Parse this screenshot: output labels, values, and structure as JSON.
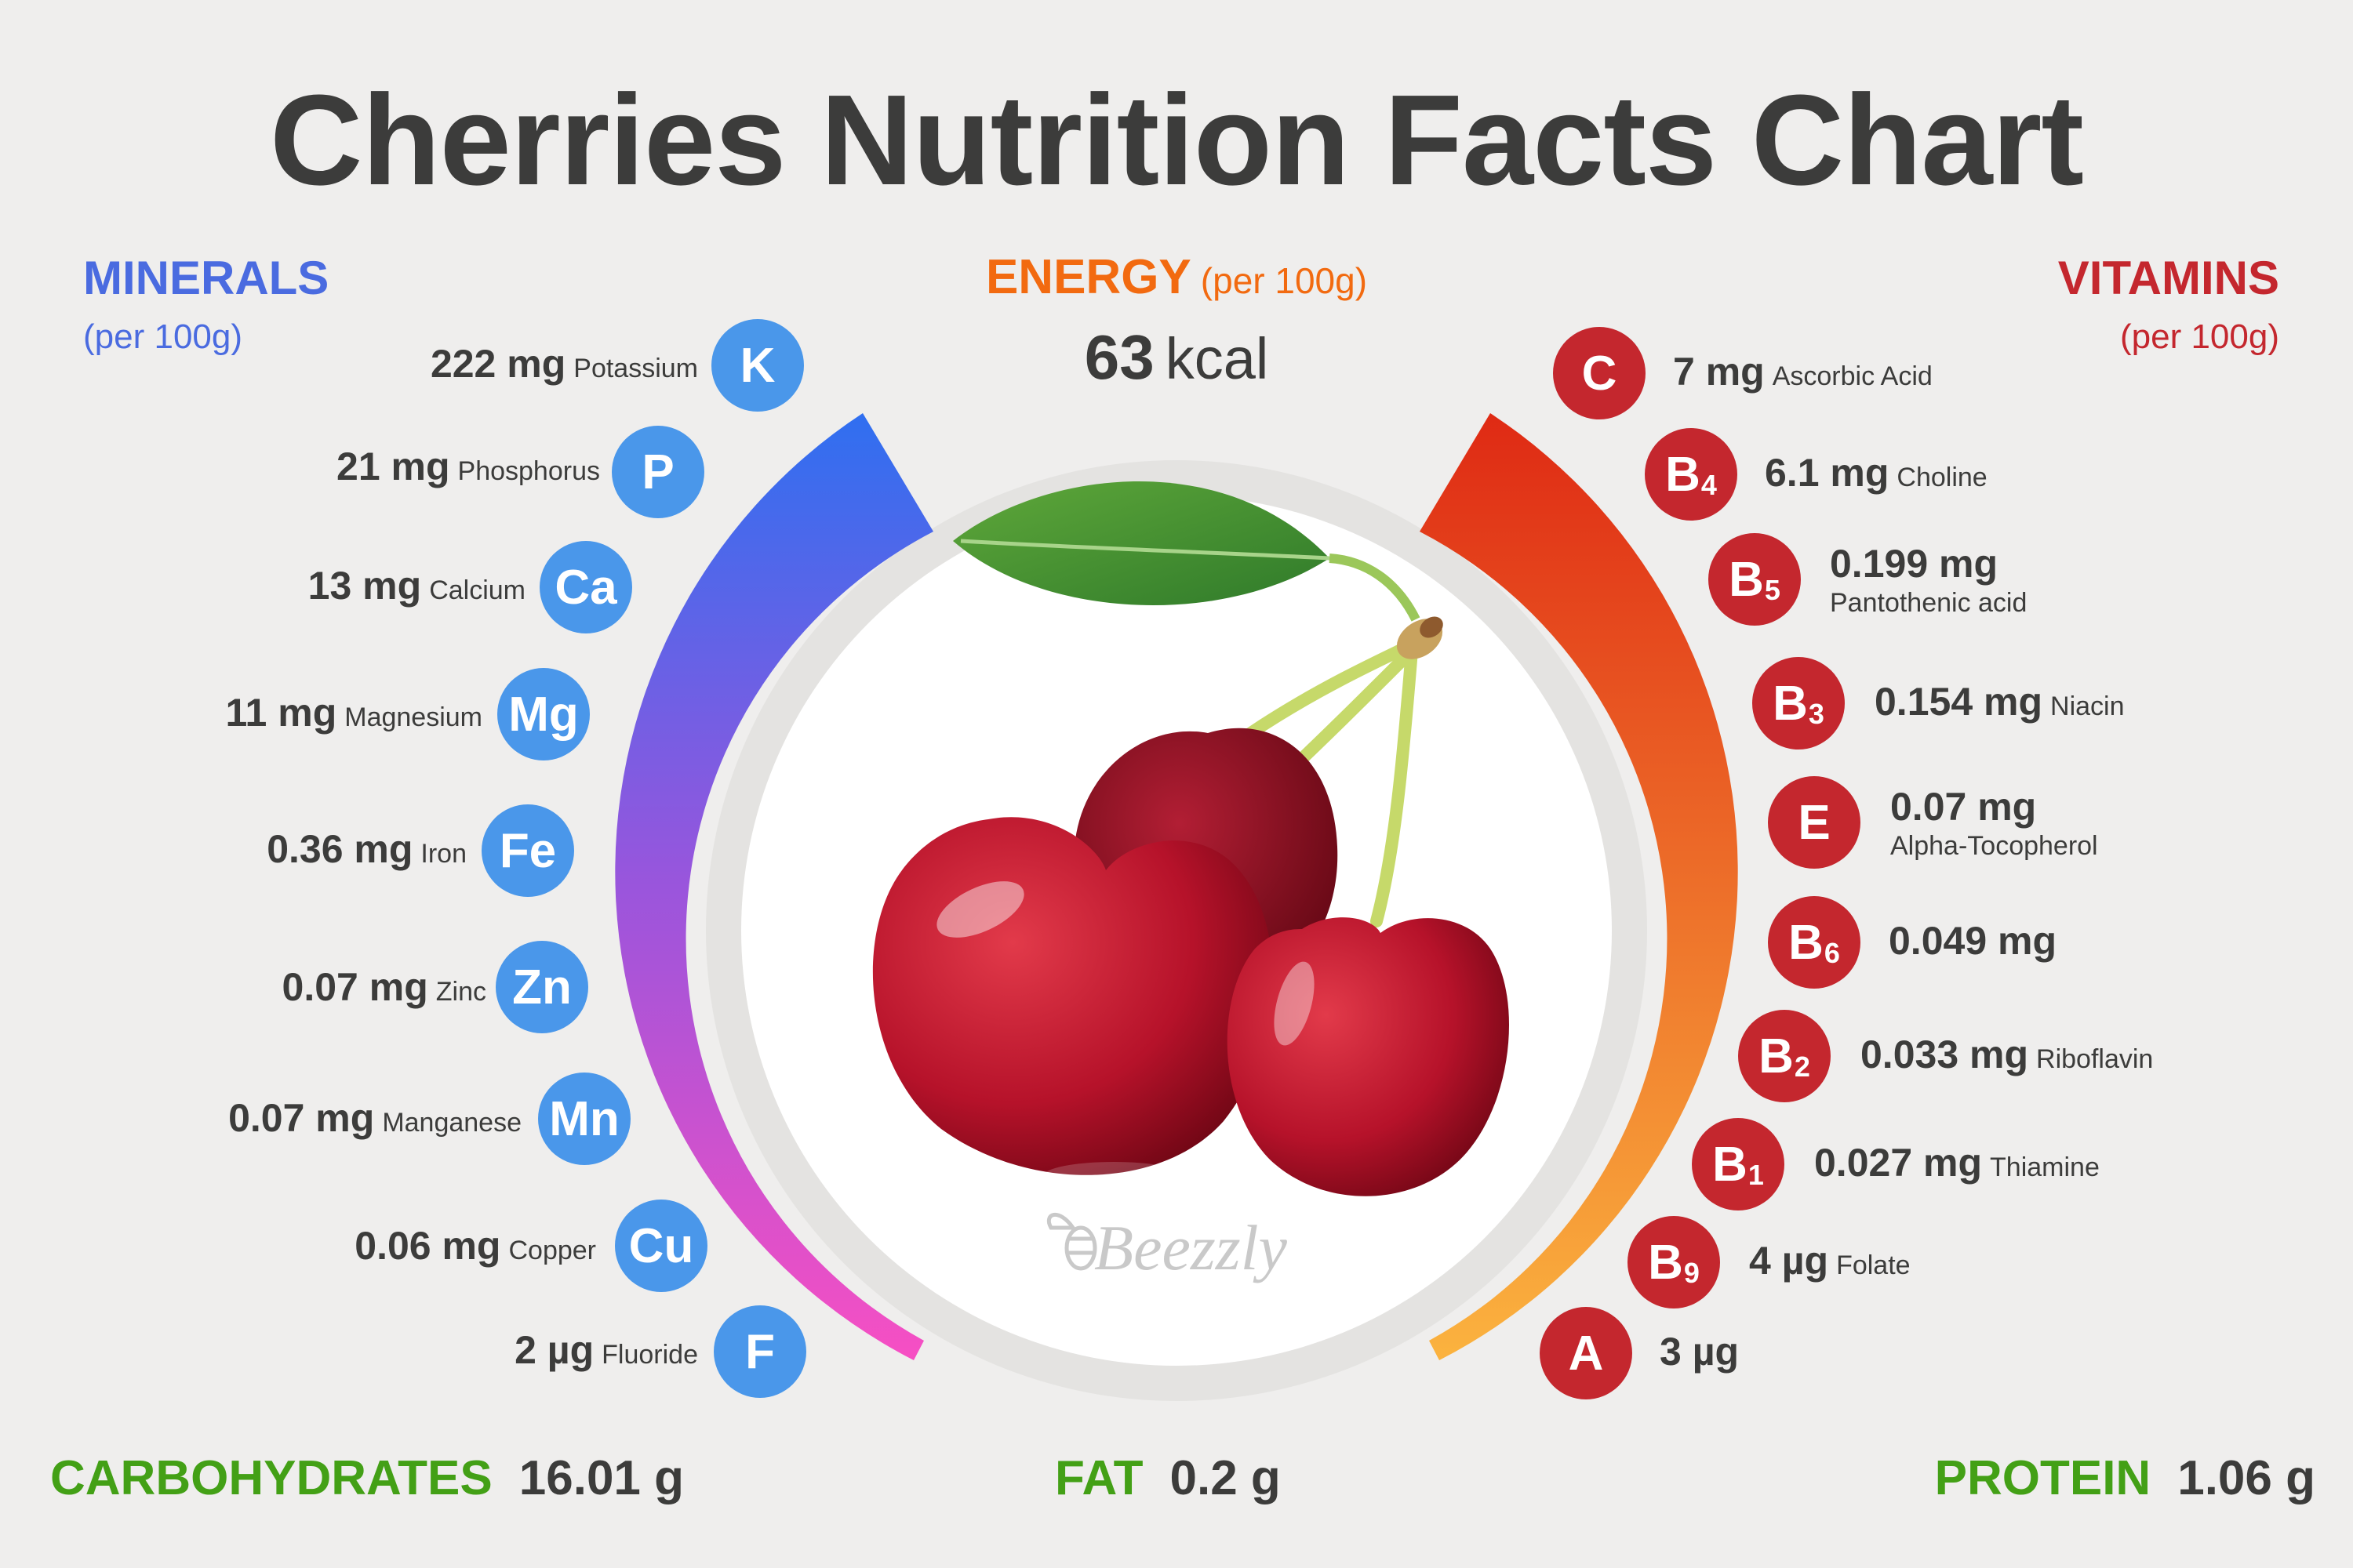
{
  "title": "Cherries Nutrition Facts Chart",
  "colors": {
    "background": "#efeeed",
    "minerals": "#4a6be0",
    "mineral_badge": "#4a97ea",
    "vitamins": "#c4272e",
    "energy": "#f26a10",
    "macros": "#43a016",
    "text": "#3c3c3b"
  },
  "minerals": {
    "title": "MINERALS",
    "subtitle": "(per 100g)",
    "items": [
      {
        "symbol": "K",
        "amount": "222 mg",
        "name": "Potassium"
      },
      {
        "symbol": "P",
        "amount": "21 mg",
        "name": "Phosphorus"
      },
      {
        "symbol": "Ca",
        "amount": "13 mg",
        "name": "Calcium"
      },
      {
        "symbol": "Mg",
        "amount": "11 mg",
        "name": "Magnesium"
      },
      {
        "symbol": "Fe",
        "amount": "0.36 mg",
        "name": "Iron"
      },
      {
        "symbol": "Zn",
        "amount": "0.07 mg",
        "name": "Zinc"
      },
      {
        "symbol": "Mn",
        "amount": "0.07 mg",
        "name": "Manganese"
      },
      {
        "symbol": "Cu",
        "amount": "0.06 mg",
        "name": "Copper"
      },
      {
        "symbol": "F",
        "amount": "2 µg",
        "name": "Fluoride"
      }
    ]
  },
  "energy": {
    "title": "ENERGY",
    "subtitle": "(per 100g)",
    "value": "63",
    "unit": "kcal"
  },
  "vitamins": {
    "title": "VITAMINS",
    "subtitle": "(per 100g)",
    "items": [
      {
        "letter": "C",
        "sub": "",
        "amount": "7 mg",
        "name": "Ascorbic Acid"
      },
      {
        "letter": "B",
        "sub": "4",
        "amount": "6.1 mg",
        "name": "Choline"
      },
      {
        "letter": "B",
        "sub": "5",
        "amount": "0.199 mg",
        "name": "Pantothenic acid"
      },
      {
        "letter": "B",
        "sub": "3",
        "amount": "0.154 mg",
        "name": "Niacin"
      },
      {
        "letter": "E",
        "sub": "",
        "amount": "0.07 mg",
        "name": "Alpha-Tocopherol"
      },
      {
        "letter": "B",
        "sub": "6",
        "amount": "0.049 mg",
        "name": ""
      },
      {
        "letter": "B",
        "sub": "2",
        "amount": "0.033 mg",
        "name": "Riboflavin"
      },
      {
        "letter": "B",
        "sub": "1",
        "amount": "0.027 mg",
        "name": "Thiamine"
      },
      {
        "letter": "B",
        "sub": "9",
        "amount": "4 µg",
        "name": "Folate"
      },
      {
        "letter": "A",
        "sub": "",
        "amount": "3 µg",
        "name": ""
      }
    ]
  },
  "macros": {
    "carbohydrates": {
      "label": "CARBOHYDRATES",
      "value": "16.01 g"
    },
    "fat": {
      "label": "FAT",
      "value": "0.2 g"
    },
    "protein": {
      "label": "PROTEIN",
      "value": "1.06 g"
    }
  },
  "watermark": "Beezzly",
  "icons": {
    "center_image": "cherries-illustration",
    "leaf": "cherry-leaf-icon"
  }
}
